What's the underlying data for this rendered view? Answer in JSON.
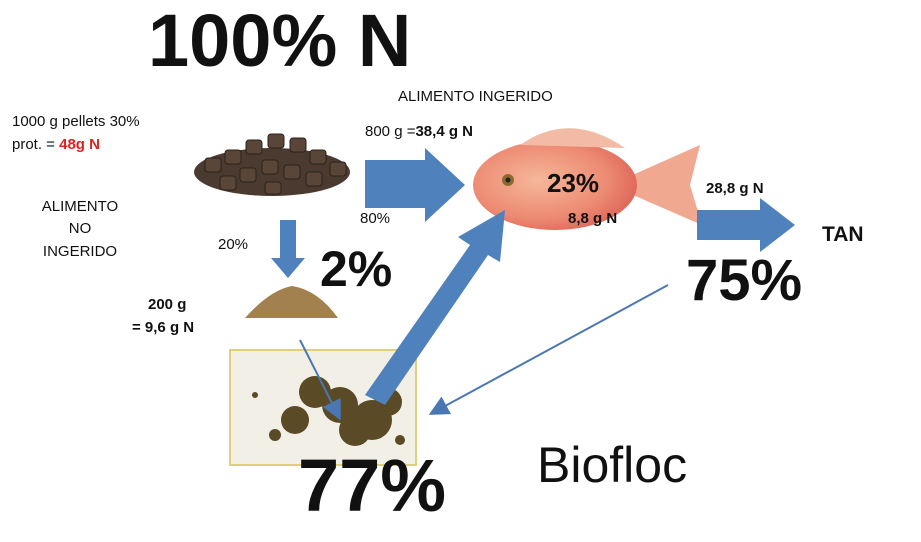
{
  "title": "100% N",
  "pellets": {
    "line1": "1000 g pellets 30%",
    "line2_prefix": "prot. = ",
    "line2_value": "48g N"
  },
  "ingested": {
    "label": "ALIMENTO INGERIDO",
    "amount_prefix": "800 g =",
    "amount_value": "38,4 g N",
    "percent": "80%"
  },
  "not_ingested": {
    "lines": [
      "ALIMENTO",
      "NO",
      "INGERIDO"
    ],
    "percent": "20%",
    "retained": "2%",
    "amount": "200 g",
    "nitrogen": "= 9,6 g N"
  },
  "fish": {
    "retained": "23%",
    "nitrogen": "8,8 g N"
  },
  "excretion": {
    "nitrogen": "28,8 g N",
    "label": "TAN",
    "percent": "75%"
  },
  "biofloc": {
    "percent": "77%",
    "label": "Biofloc"
  }
}
